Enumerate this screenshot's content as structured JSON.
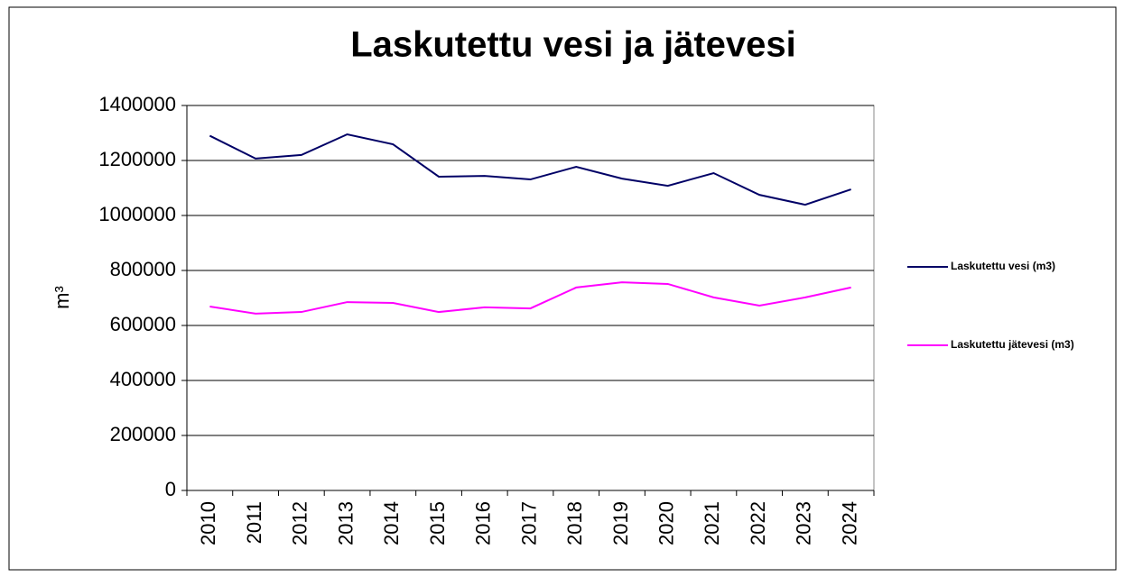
{
  "chart_data": {
    "type": "line",
    "title": "Laskutettu vesi ja jätevesi",
    "y_label": "m³",
    "categories": [
      "2010",
      "2011",
      "2012",
      "2013",
      "2014",
      "2015",
      "2016",
      "2017",
      "2018",
      "2019",
      "2020",
      "2021",
      "2022",
      "2023",
      "2024"
    ],
    "series": [
      {
        "name": "Laskutettu vesi (m3)",
        "color": "#000066",
        "values": [
          1290000,
          1207000,
          1220000,
          1295000,
          1259000,
          1141000,
          1144000,
          1131000,
          1177000,
          1134000,
          1108000,
          1154000,
          1075000,
          1039000,
          1095000
        ]
      },
      {
        "name": "Laskutettu jätevesi (m3)",
        "color": "#ff00ff",
        "values": [
          669000,
          643000,
          649000,
          685000,
          682000,
          649000,
          666000,
          662000,
          738000,
          757000,
          751000,
          702000,
          672000,
          702000,
          738000
        ]
      }
    ],
    "ylim": [
      0,
      1400000
    ],
    "yticks": [
      0,
      200000,
      400000,
      600000,
      800000,
      1000000,
      1200000,
      1400000
    ],
    "grid": true,
    "legend": "right"
  }
}
